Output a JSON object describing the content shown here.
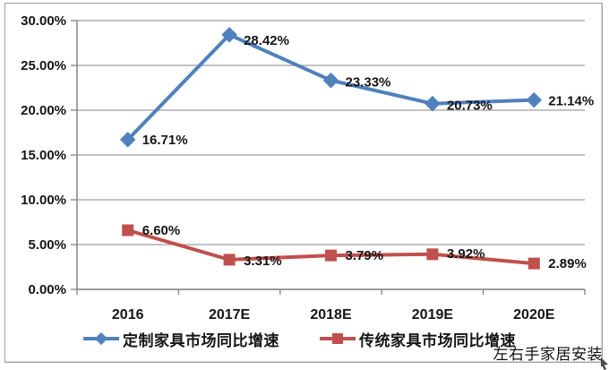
{
  "chart": {
    "watermark": "左右手家居安装",
    "colors": {
      "background": "#ffffff",
      "border": "#a0a0a0",
      "grid": "#adadad",
      "axis": "#8a8a8a",
      "text": "#151515",
      "series_blue": "#4f81bd",
      "series_red": "#c0504d"
    }
  },
  "chart_data": {
    "type": "line",
    "title": "",
    "categories": [
      "2016",
      "2017E",
      "2018E",
      "2019E",
      "2020E"
    ],
    "series": [
      {
        "name": "定制家具市场同比增速",
        "color": "#4f81bd",
        "marker": "diamond",
        "values": [
          16.71,
          28.42,
          23.33,
          20.73,
          21.14
        ],
        "labels": [
          "16.71%",
          "28.42%",
          "23.33%",
          "20.73%",
          "21.14%"
        ],
        "label_dy": [
          0,
          6,
          2,
          2,
          1
        ]
      },
      {
        "name": "传统家具市场同比增速",
        "color": "#c0504d",
        "marker": "square",
        "values": [
          6.6,
          3.31,
          3.79,
          3.92,
          2.89
        ],
        "labels": [
          "6.60%",
          "3.31%",
          "3.79%",
          "3.92%",
          "2.89%"
        ],
        "label_dy": [
          0,
          1,
          0,
          -1,
          0
        ]
      }
    ],
    "ylim": [
      0,
      30
    ],
    "ytick_step": 5,
    "ytick_labels": [
      "0.00%",
      "5.00%",
      "10.00%",
      "15.00%",
      "20.00%",
      "25.00%",
      "30.00%"
    ],
    "grid": true,
    "legend_position": "bottom"
  }
}
